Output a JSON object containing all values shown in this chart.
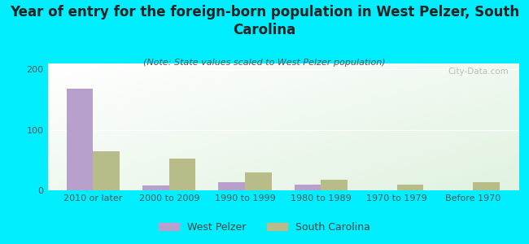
{
  "title": "Year of entry for the foreign-born population in West Pelzer, South\nCarolina",
  "subtitle": "(Note: State values scaled to West Pelzer population)",
  "categories": [
    "2010 or later",
    "2000 to 2009",
    "1990 to 1999",
    "1980 to 1989",
    "1970 to 1979",
    "Before 1970"
  ],
  "west_pelzer": [
    168,
    8,
    14,
    9,
    0,
    0
  ],
  "south_carolina": [
    65,
    52,
    30,
    17,
    10,
    14
  ],
  "bar_color_wp": "#b8a0cc",
  "bar_color_sc": "#b8bc88",
  "background_outer": "#00eeff",
  "ylim": [
    0,
    210
  ],
  "yticks": [
    0,
    100,
    200
  ],
  "bar_width": 0.35,
  "legend_wp": "West Pelzer",
  "legend_sc": "South Carolina",
  "watermark": "City-Data.com",
  "title_fontsize": 12,
  "subtitle_fontsize": 8,
  "tick_fontsize": 8,
  "legend_fontsize": 9
}
